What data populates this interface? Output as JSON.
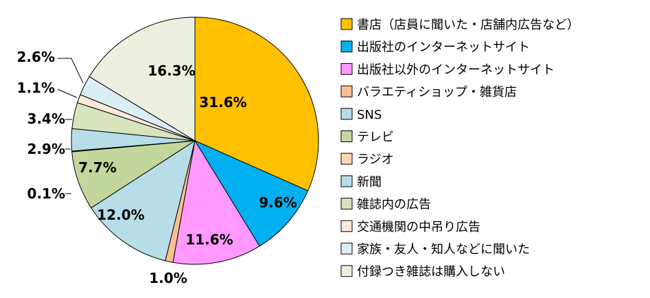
{
  "chart_data": {
    "type": "pie",
    "start_angle_deg": 0,
    "direction": "clockwise",
    "legend_position": "right",
    "slices": [
      {
        "label": "書店（店員に聞いた・店舗内広告など）",
        "value": 31.6,
        "value_label": "31.6%",
        "color": "#FFC000"
      },
      {
        "label": "出版社のインターネットサイト",
        "value": 9.6,
        "value_label": "9.6%",
        "color": "#00B0F0"
      },
      {
        "label": "出版社以外のインターネットサイト",
        "value": 11.6,
        "value_label": "11.6%",
        "color": "#FF99FF"
      },
      {
        "label": "バラエティショップ・雑貨店",
        "value": 1.0,
        "value_label": "1.0%",
        "color": "#FAC090"
      },
      {
        "label": "SNS",
        "value": 12.0,
        "value_label": "12.0%",
        "color": "#B7DEE8"
      },
      {
        "label": "テレビ",
        "value": 7.7,
        "value_label": "7.7%",
        "color": "#C3D69B"
      },
      {
        "label": "ラジオ",
        "value": 0.1,
        "value_label": "0.1%",
        "color": "#FCD5B5"
      },
      {
        "label": "新聞",
        "value": 2.9,
        "value_label": "2.9%",
        "color": "#B7DEE8"
      },
      {
        "label": "雑誌内の広告",
        "value": 3.4,
        "value_label": "3.4%",
        "color": "#D7E4BD"
      },
      {
        "label": "交通機関の中吊り広告",
        "value": 1.1,
        "value_label": "1.1%",
        "color": "#FDE9D9"
      },
      {
        "label": "家族・友人・知人などに聞いた",
        "value": 2.6,
        "value_label": "2.6%",
        "color": "#DBEEF4"
      },
      {
        "label": "付録つき雑誌は購入しない",
        "value": 16.3,
        "value_label": "16.3%",
        "color": "#EBF1DE"
      }
    ]
  }
}
